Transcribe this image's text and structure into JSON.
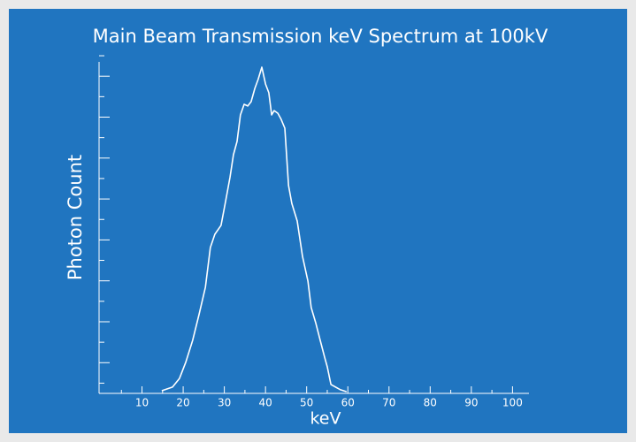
{
  "chart_data": {
    "type": "line",
    "title": "Main Beam Transmission keV Spectrum at 100kV",
    "x_label": "keV",
    "y_label": "Photon Count",
    "color": "#ffffff",
    "x": [
      14.8,
      17.4,
      19.1,
      20.6,
      22.3,
      23.9,
      25.4,
      26.6,
      27.7,
      29.2,
      30.3,
      31.4,
      32.2,
      33.1,
      33.9,
      34.8,
      35.7,
      36.5,
      37.4,
      38.2,
      39.1,
      40.0,
      40.8,
      41.5,
      42.1,
      43.0,
      43.8,
      44.7,
      45.6,
      46.4,
      47.7,
      49.0,
      50.3,
      51.1,
      52.2,
      53.3,
      54.4,
      55.0,
      55.9,
      58.2,
      59.7
    ],
    "values": [
      0.8,
      1.9,
      4.5,
      9.3,
      16,
      24,
      32,
      44,
      48,
      50.7,
      57.9,
      65.3,
      72,
      76,
      84,
      87.2,
      86.7,
      88,
      92,
      94.7,
      98.4,
      93.3,
      90.7,
      84,
      85.3,
      84.5,
      82.7,
      80,
      62.7,
      57.3,
      52,
      41.3,
      33.9,
      25.9,
      21.3,
      16,
      10.7,
      8,
      2.7,
      1.1,
      0.5
    ],
    "xlim": [
      0,
      104
    ],
    "xticks": [
      10,
      20,
      30,
      40,
      50,
      60,
      70,
      80,
      90,
      100
    ],
    "ylim": [
      0,
      100
    ]
  }
}
